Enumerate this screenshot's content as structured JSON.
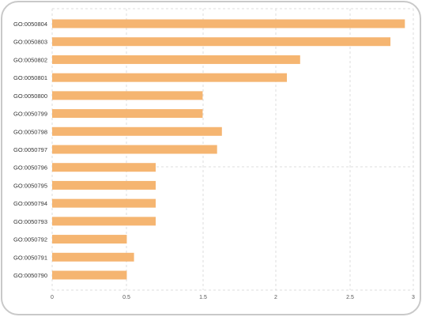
{
  "chart_data": {
    "type": "bar",
    "orientation": "horizontal",
    "categories": [
      "GO:0050804",
      "GO:0050803",
      "GO:0050802",
      "GO:0050801",
      "GO:0050800",
      "GO:0050799",
      "GO:0050798",
      "GO:0050797",
      "GO:0050796",
      "GO:0050795",
      "GO:0050794",
      "GO:0050793",
      "GO:0050792",
      "GO:0050791",
      "GO:0050790"
    ],
    "values": [
      2.93,
      2.81,
      2.06,
      1.95,
      1.25,
      1.25,
      1.41,
      1.37,
      0.86,
      0.86,
      0.86,
      0.86,
      0.62,
      0.68,
      0.62
    ],
    "xlim": [
      0,
      3
    ],
    "xticks": [
      "0",
      "0.5",
      "1.5",
      "2",
      "2.5",
      "3"
    ],
    "grid": true,
    "colors": {
      "bar": "#f5b571",
      "grid": "#dcdcdc",
      "frame": "#c9c9c9"
    }
  }
}
